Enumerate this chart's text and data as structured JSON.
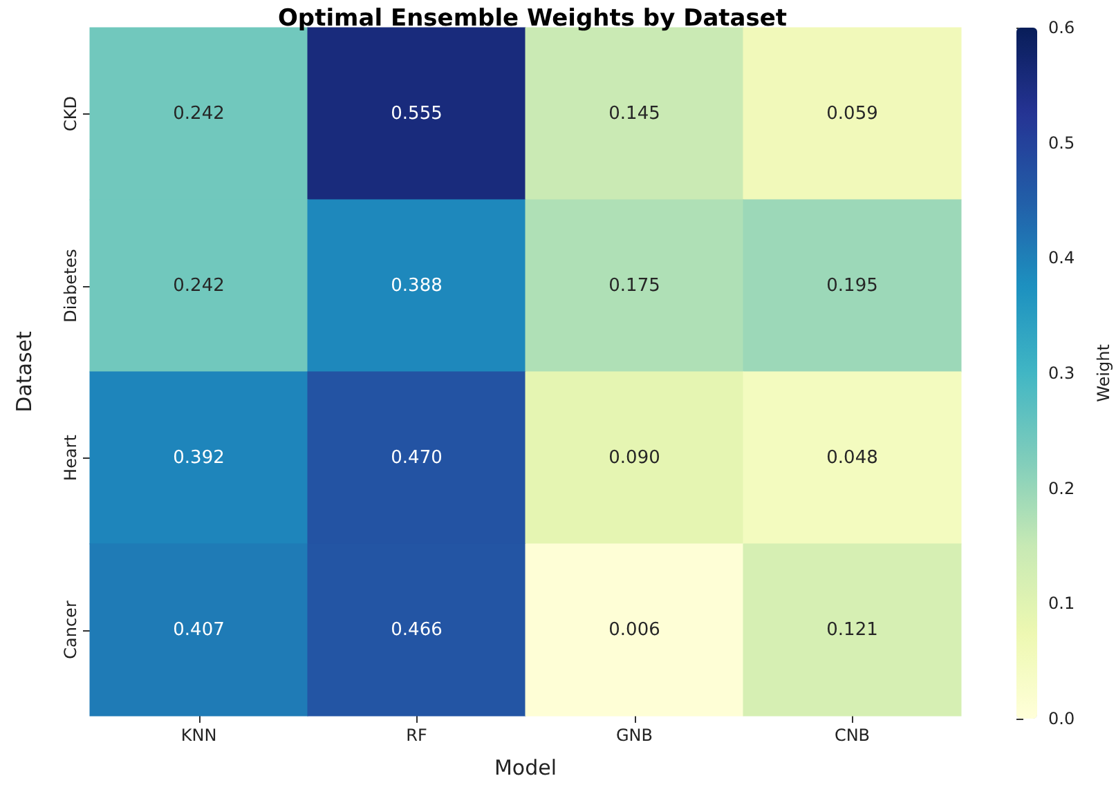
{
  "chart_data": {
    "type": "heatmap",
    "title": "Optimal Ensemble Weights by Dataset",
    "xlabel": "Model",
    "ylabel": "Dataset",
    "clabel": "Weight",
    "categories": [
      "KNN",
      "RF",
      "GNB",
      "CNB"
    ],
    "y_categories": [
      "CKD",
      "Diabetes",
      "Heart",
      "Cancer"
    ],
    "cells": [
      [
        0.242,
        0.555,
        0.145,
        0.059
      ],
      [
        0.242,
        0.388,
        0.175,
        0.195
      ],
      [
        0.392,
        0.47,
        0.09,
        0.048
      ],
      [
        0.407,
        0.466,
        0.006,
        0.121
      ]
    ],
    "cell_labels": [
      [
        "0.242",
        "0.555",
        "0.145",
        "0.059"
      ],
      [
        "0.242",
        "0.388",
        "0.175",
        "0.195"
      ],
      [
        "0.392",
        "0.470",
        "0.090",
        "0.048"
      ],
      [
        "0.407",
        "0.466",
        "0.006",
        "0.121"
      ]
    ],
    "clim": [
      0,
      0.6
    ],
    "cticks": [
      {
        "value": 0,
        "label": "0.0"
      },
      {
        "value": 0.1,
        "label": "0.1"
      },
      {
        "value": 0.2,
        "label": "0.2"
      },
      {
        "value": 0.3,
        "label": "0.3"
      },
      {
        "value": 0.4,
        "label": "0.4"
      },
      {
        "value": 0.5,
        "label": "0.5"
      },
      {
        "value": 0.6,
        "label": "0.6"
      }
    ]
  }
}
